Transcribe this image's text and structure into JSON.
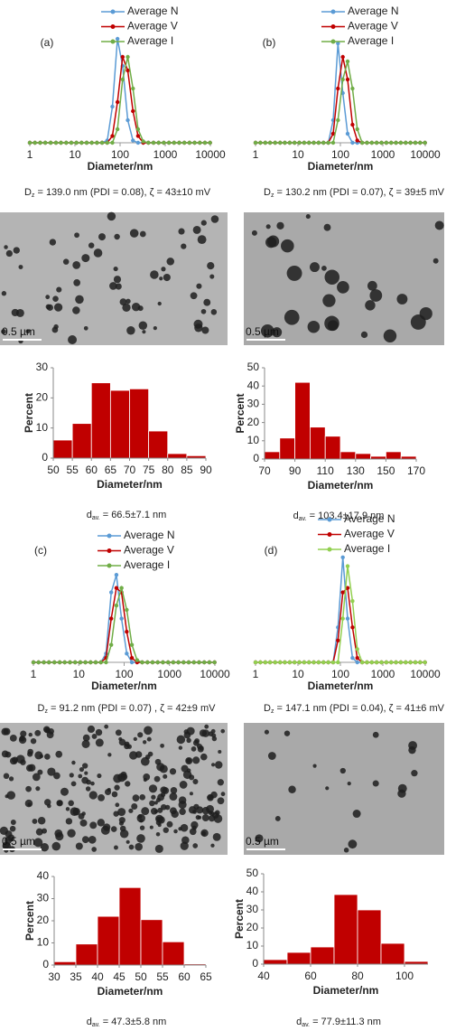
{
  "chart_data": [
    {
      "type": "line",
      "label": "(a)",
      "xlabel": "Diameter/nm",
      "log_x": true,
      "xlim": [
        1,
        10000
      ],
      "xticks": [
        1,
        10,
        100,
        1000,
        10000
      ],
      "ylim": [
        0,
        25
      ],
      "legend": "top-right",
      "x": [
        1,
        1.3,
        1.7,
        2.2,
        2.9,
        3.8,
        4.9,
        6.4,
        8.3,
        10.8,
        14,
        18.2,
        23.6,
        30.7,
        39.9,
        51.9,
        67.5,
        87.7,
        114,
        148,
        193,
        250,
        326,
        423,
        550,
        715,
        930,
        1210,
        1570,
        2040,
        2650,
        3450,
        4480,
        5830,
        7570,
        9840
      ],
      "series": [
        {
          "name": "Average N",
          "color": "#5b9bd5",
          "values": [
            0,
            0,
            0,
            0,
            0,
            0,
            0,
            0,
            0,
            0,
            0,
            0,
            0,
            0,
            0,
            0.5,
            8,
            23,
            17,
            5,
            0.5,
            0,
            0,
            0,
            0,
            0,
            0,
            0,
            0,
            0,
            0,
            0,
            0,
            0,
            0,
            0
          ]
        },
        {
          "name": "Average V",
          "color": "#c00000",
          "values": [
            0,
            0,
            0,
            0,
            0,
            0,
            0,
            0,
            0,
            0,
            0,
            0,
            0,
            0,
            0,
            0,
            1.5,
            9,
            19,
            16,
            7,
            1.5,
            0,
            0,
            0,
            0,
            0,
            0,
            0,
            0,
            0,
            0,
            0,
            0,
            0,
            0
          ]
        },
        {
          "name": "Average I",
          "color": "#70ad47",
          "values": [
            0,
            0,
            0,
            0,
            0,
            0,
            0,
            0,
            0,
            0,
            0,
            0,
            0,
            0,
            0,
            0,
            0,
            3,
            14,
            19,
            12,
            3,
            0.3,
            0,
            0,
            0,
            0,
            0,
            0,
            0,
            0,
            0,
            0,
            0,
            0,
            0
          ]
        }
      ],
      "caption": {
        "symbol": "D",
        "subscript": "z",
        "text": " = 139.0 nm (PDI = 0.08), ζ = 43±10 mV"
      }
    },
    {
      "type": "line",
      "label": "(b)",
      "xlabel": "Diameter/nm",
      "log_x": true,
      "xlim": [
        1,
        10000
      ],
      "xticks": [
        1,
        10,
        100,
        1000,
        10000
      ],
      "ylim": [
        0,
        25
      ],
      "legend": "top-right",
      "x": [
        1,
        1.3,
        1.7,
        2.2,
        2.9,
        3.8,
        4.9,
        6.4,
        8.3,
        10.8,
        14,
        18.2,
        23.6,
        30.7,
        39.9,
        51.9,
        67.5,
        87.7,
        114,
        148,
        193,
        250,
        326,
        423,
        550,
        715,
        930,
        1210,
        1570,
        2040,
        2650,
        3450,
        4480,
        5830,
        7570,
        9840
      ],
      "series": [
        {
          "name": "Average N",
          "color": "#5b9bd5",
          "values": [
            0,
            0,
            0,
            0,
            0,
            0,
            0,
            0,
            0,
            0,
            0,
            0,
            0,
            0,
            0,
            0,
            5,
            22,
            11,
            2,
            0,
            0,
            0,
            0,
            0,
            0,
            0,
            0,
            0,
            0,
            0,
            0,
            0,
            0,
            0,
            0
          ]
        },
        {
          "name": "Average V",
          "color": "#c00000",
          "values": [
            0,
            0,
            0,
            0,
            0,
            0,
            0,
            0,
            0,
            0,
            0,
            0,
            0,
            0,
            0,
            0,
            2,
            12,
            19,
            14,
            4,
            0.5,
            0,
            0,
            0,
            0,
            0,
            0,
            0,
            0,
            0,
            0,
            0,
            0,
            0,
            0
          ]
        },
        {
          "name": "Average I",
          "color": "#70ad47",
          "values": [
            0,
            0,
            0,
            0,
            0,
            0,
            0,
            0,
            0,
            0,
            0,
            0,
            0,
            0,
            0,
            0,
            0,
            5,
            14,
            18,
            12,
            3,
            0,
            0,
            0,
            0,
            0,
            0,
            0,
            0,
            0,
            0,
            0,
            0,
            0,
            0
          ]
        }
      ],
      "caption": {
        "symbol": "D",
        "subscript": "z",
        "text": " = 130.2 nm (PDI = 0.07), ζ = 39±5 mV"
      }
    },
    {
      "type": "histogram",
      "xlabel": "Diameter/nm",
      "ylabel": "Percent",
      "color": "#c00000",
      "bins": [
        50,
        55,
        60,
        65,
        70,
        75,
        80,
        85,
        90
      ],
      "values": [
        6,
        11.5,
        25,
        22.5,
        23,
        9,
        1.5,
        0.8
      ],
      "xlim": [
        50,
        90
      ],
      "xticks": [
        50,
        55,
        60,
        65,
        70,
        75,
        80,
        85,
        90
      ],
      "ylim": [
        0,
        30
      ],
      "yticks": [
        0,
        10,
        20,
        30
      ],
      "caption": {
        "symbol": "d",
        "subscript": "av.",
        "text": " = 66.5±7.1 nm"
      }
    },
    {
      "type": "histogram",
      "xlabel": "Diameter/nm",
      "ylabel": "Percent",
      "color": "#c00000",
      "bins": [
        70,
        80,
        90,
        100,
        110,
        120,
        130,
        140,
        150,
        160,
        170
      ],
      "values": [
        4,
        11.5,
        42,
        17.5,
        12.5,
        4,
        3,
        1.5,
        4,
        1.5
      ],
      "xlim": [
        70,
        170
      ],
      "xticks": [
        70,
        90,
        110,
        130,
        150,
        170
      ],
      "ylim": [
        0,
        50
      ],
      "yticks": [
        0,
        10,
        20,
        30,
        40,
        50
      ],
      "caption": {
        "symbol": "d",
        "subscript": "av.",
        "text": " = 103.4±17.9 nm"
      }
    },
    {
      "type": "line",
      "label": "(c)",
      "xlabel": "Diameter/nm",
      "log_x": true,
      "xlim": [
        1,
        10000
      ],
      "xticks": [
        1,
        10,
        100,
        1000,
        10000
      ],
      "ylim": [
        0,
        25
      ],
      "legend": "top-right",
      "x": [
        1,
        1.3,
        1.7,
        2.2,
        2.9,
        3.8,
        4.9,
        6.4,
        8.3,
        10.8,
        14,
        18.2,
        23.6,
        30.7,
        39.9,
        51.9,
        67.5,
        87.7,
        114,
        148,
        193,
        250,
        326,
        423,
        550,
        715,
        930,
        1210,
        1570,
        2040,
        2650,
        3450,
        4480,
        5830,
        7570,
        9840
      ],
      "series": [
        {
          "name": "Average N",
          "color": "#5b9bd5",
          "values": [
            0,
            0,
            0,
            0,
            0,
            0,
            0,
            0,
            0,
            0,
            0,
            0,
            0,
            0,
            2,
            16,
            20,
            10,
            2,
            0,
            0,
            0,
            0,
            0,
            0,
            0,
            0,
            0,
            0,
            0,
            0,
            0,
            0,
            0,
            0,
            0
          ]
        },
        {
          "name": "Average V",
          "color": "#c00000",
          "values": [
            0,
            0,
            0,
            0,
            0,
            0,
            0,
            0,
            0,
            0,
            0,
            0,
            0,
            0,
            1,
            10,
            17,
            16,
            7,
            1,
            0,
            0,
            0,
            0,
            0,
            0,
            0,
            0,
            0,
            0,
            0,
            0,
            0,
            0,
            0,
            0
          ]
        },
        {
          "name": "Average I",
          "color": "#70ad47",
          "values": [
            0,
            0,
            0,
            0,
            0,
            0,
            0,
            0,
            0,
            0,
            0,
            0,
            0,
            0,
            0,
            4,
            13,
            17,
            12,
            4,
            0.5,
            0,
            0,
            0,
            0,
            0,
            0,
            0,
            0,
            0,
            0,
            0,
            0,
            0,
            0,
            0
          ]
        }
      ],
      "caption": {
        "symbol": "D",
        "subscript": "z",
        "text": " = 91.2 nm (PDI = 0.07) , ζ = 42±9 mV"
      }
    },
    {
      "type": "line",
      "label": "(d)",
      "xlabel": "Diameter/nm",
      "log_x": true,
      "xlim": [
        1,
        10000
      ],
      "xticks": [
        1,
        10,
        100,
        1000,
        10000
      ],
      "ylim": [
        0,
        25
      ],
      "legend": "top-right",
      "x": [
        1,
        1.3,
        1.7,
        2.2,
        2.9,
        3.8,
        4.9,
        6.4,
        8.3,
        10.8,
        14,
        18.2,
        23.6,
        30.7,
        39.9,
        51.9,
        67.5,
        87.7,
        114,
        148,
        193,
        250,
        326,
        423,
        550,
        715,
        930,
        1210,
        1570,
        2040,
        2650,
        3450,
        4480,
        5830,
        7570,
        9840
      ],
      "series": [
        {
          "name": "Average N",
          "color": "#5b9bd5",
          "values": [
            0,
            0,
            0,
            0,
            0,
            0,
            0,
            0,
            0,
            0,
            0,
            0,
            0,
            0,
            0,
            0,
            0,
            8,
            24,
            10,
            1,
            0,
            0,
            0,
            0,
            0,
            0,
            0,
            0,
            0,
            0,
            0,
            0,
            0,
            0,
            0
          ]
        },
        {
          "name": "Average V",
          "color": "#c00000",
          "values": [
            0,
            0,
            0,
            0,
            0,
            0,
            0,
            0,
            0,
            0,
            0,
            0,
            0,
            0,
            0,
            0,
            0,
            5,
            16,
            17,
            8,
            1,
            0,
            0,
            0,
            0,
            0,
            0,
            0,
            0,
            0,
            0,
            0,
            0,
            0,
            0
          ]
        },
        {
          "name": "Average I",
          "color": "#92d050",
          "values": [
            0,
            0,
            0,
            0,
            0,
            0,
            0,
            0,
            0,
            0,
            0,
            0,
            0,
            0,
            0,
            0,
            0,
            0,
            10,
            22,
            14,
            3,
            0,
            0,
            0,
            0,
            0,
            0,
            0,
            0,
            0,
            0,
            0,
            0,
            0,
            0
          ]
        }
      ],
      "caption": {
        "symbol": "D",
        "subscript": "z",
        "text": " = 147.1 nm (PDI = 0.04), ζ = 41±6 mV"
      }
    },
    {
      "type": "histogram",
      "xlabel": "Diameter/nm",
      "ylabel": "Percent",
      "color": "#c00000",
      "bins": [
        30,
        35,
        40,
        45,
        50,
        55,
        60,
        65
      ],
      "values": [
        1.5,
        9.5,
        22,
        35,
        20.5,
        10.5,
        0.5
      ],
      "xlim": [
        30,
        65
      ],
      "xticks": [
        30,
        35,
        40,
        45,
        50,
        55,
        60,
        65
      ],
      "ylim": [
        0,
        40
      ],
      "yticks": [
        0,
        10,
        20,
        30,
        40
      ],
      "caption": {
        "symbol": "d",
        "subscript": "av.",
        "text": " = 47.3±5.8 nm"
      }
    },
    {
      "type": "histogram",
      "xlabel": "Diameter/nm",
      "ylabel": "Percent",
      "color": "#c00000",
      "bins": [
        40,
        50,
        60,
        70,
        80,
        90,
        100,
        110
      ],
      "values": [
        2.5,
        6.5,
        9.5,
        38.5,
        30,
        11.5,
        1.5
      ],
      "xlim": [
        40,
        110
      ],
      "xticks": [
        40,
        60,
        80,
        100
      ],
      "ylim": [
        0,
        50
      ],
      "yticks": [
        0,
        10,
        20,
        30,
        40,
        50
      ],
      "caption": {
        "symbol": "d",
        "subscript": "av.",
        "text": " = 77.9±11.3 nm"
      }
    }
  ],
  "images": [
    {
      "scale_bar": "0.5 µm"
    },
    {
      "scale_bar": "0.5 µm"
    },
    {
      "scale_bar": "0.5 µm"
    },
    {
      "scale_bar": "0.5 µm"
    }
  ]
}
